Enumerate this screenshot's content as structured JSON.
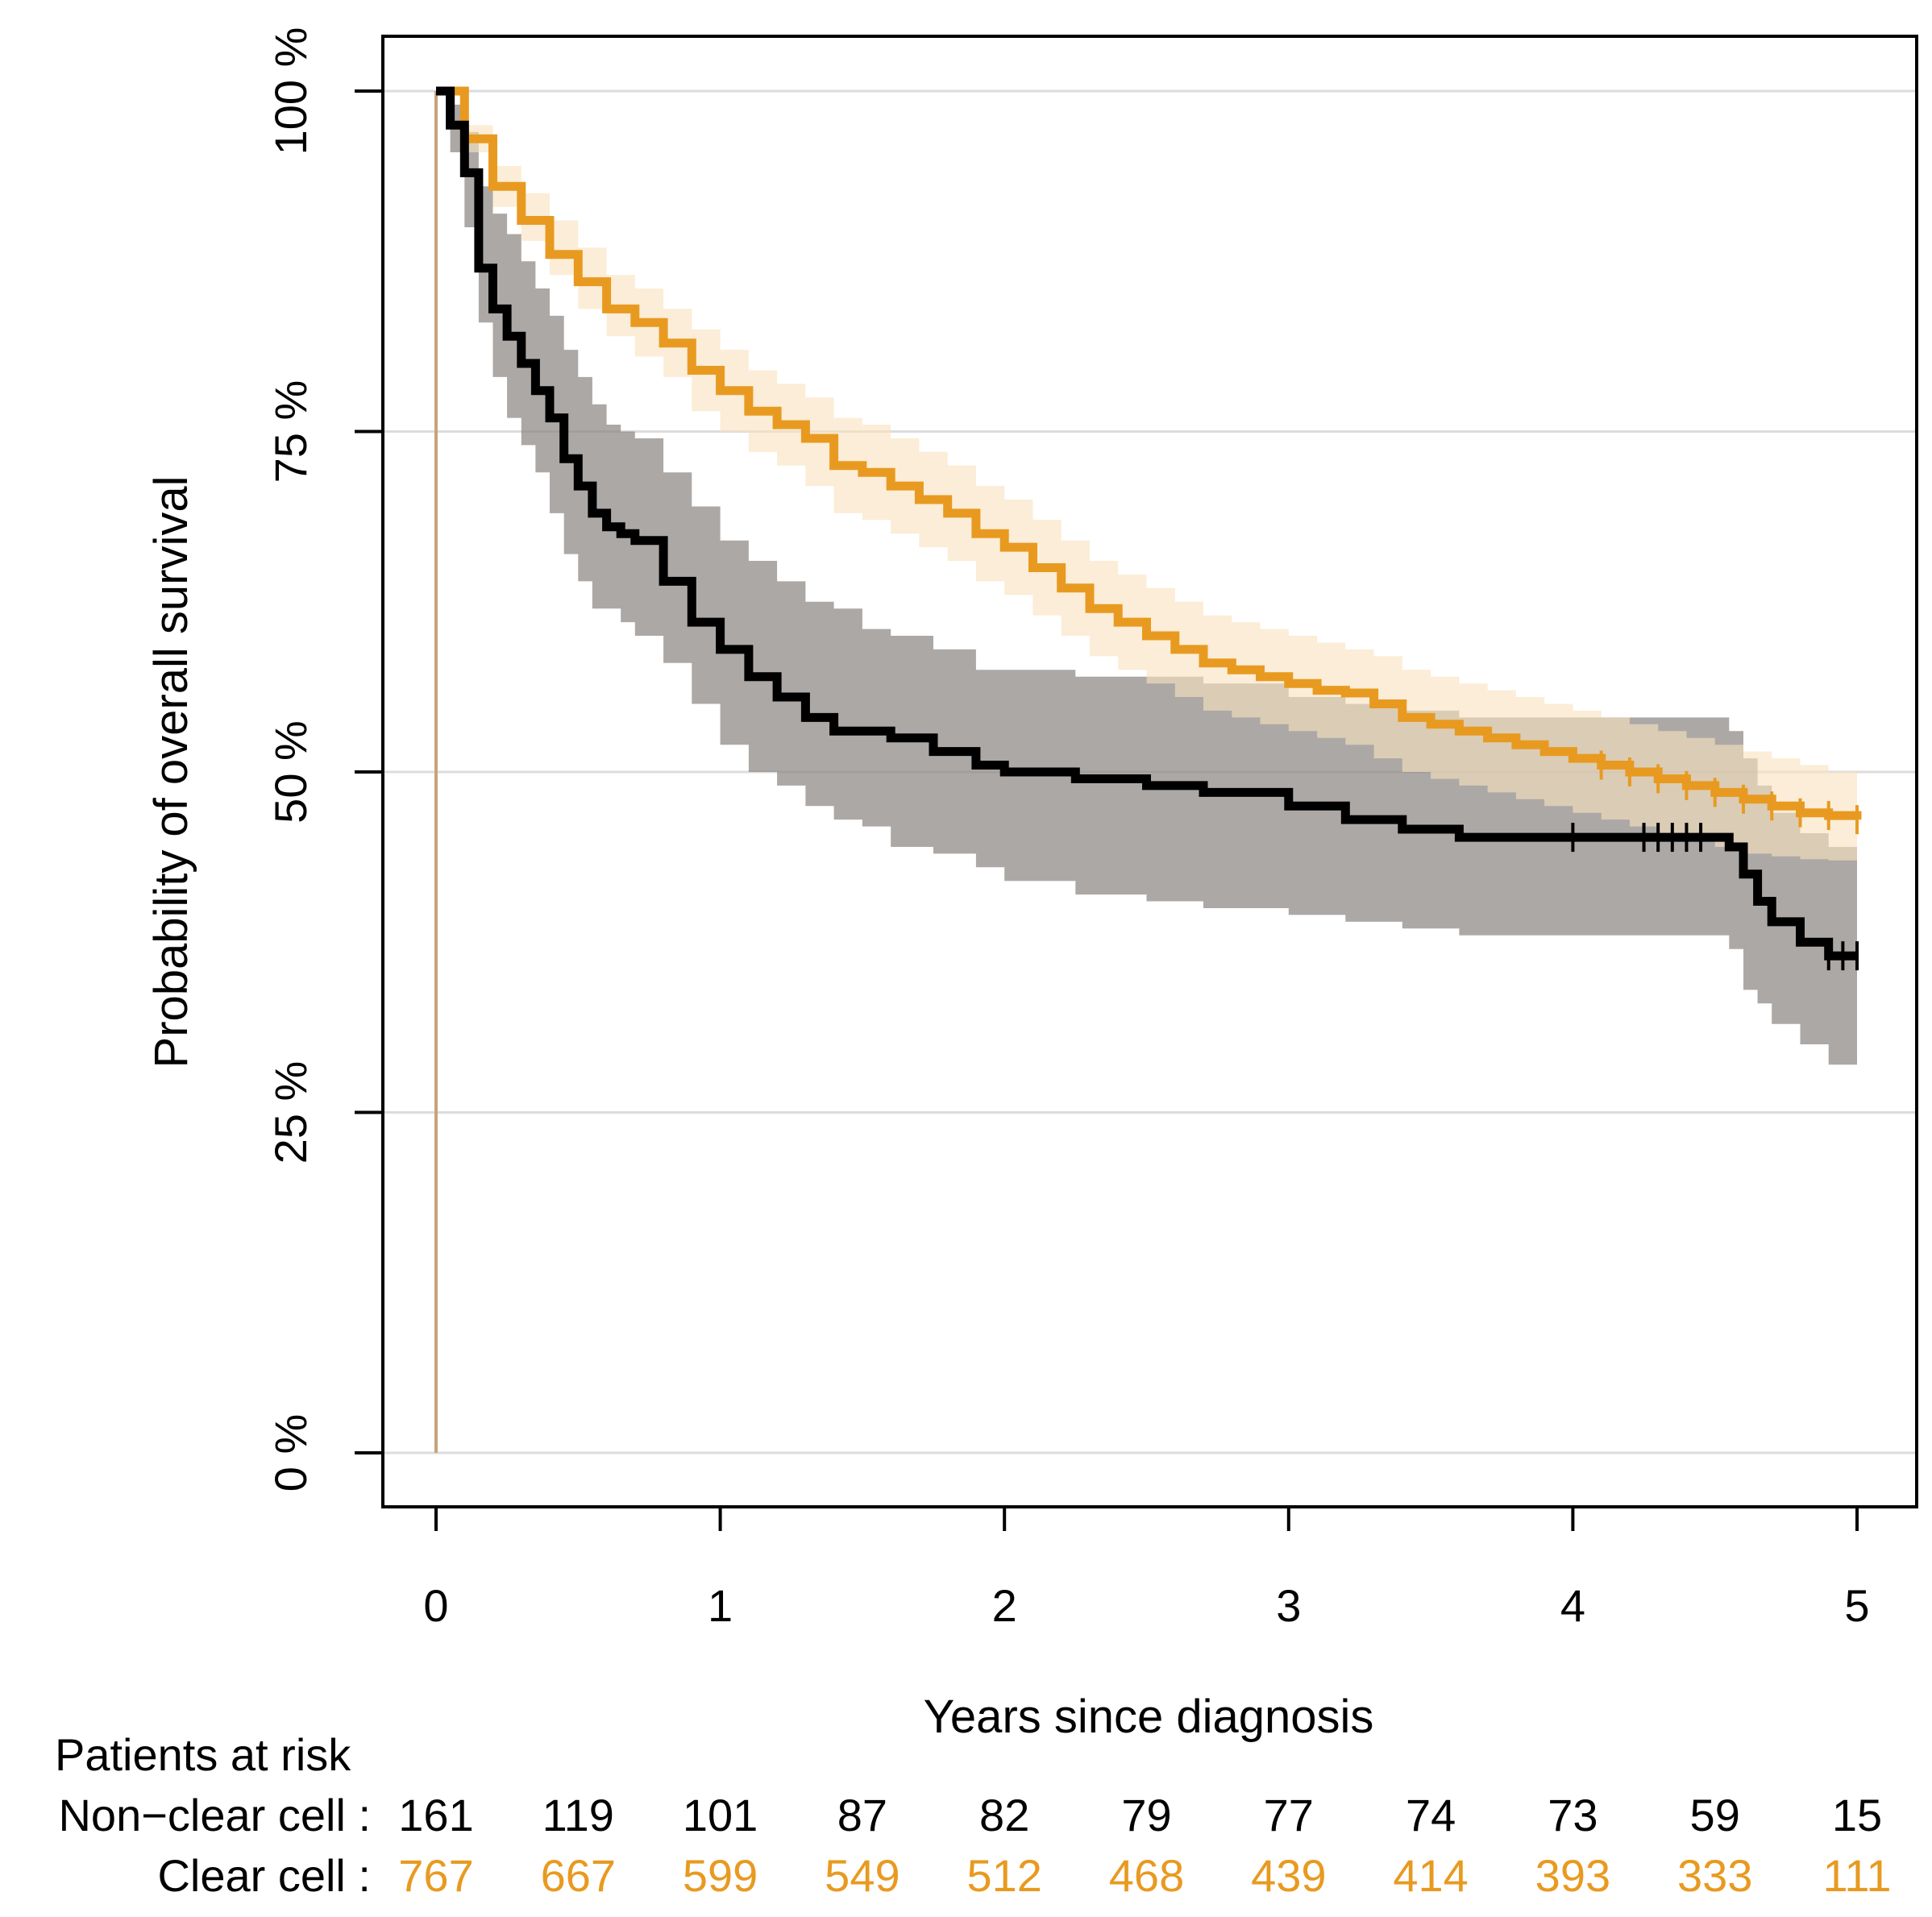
{
  "chart_data": {
    "type": "line",
    "subtype": "kaplan-meier",
    "title": "",
    "xlabel": "Years since diagnosis",
    "ylabel": "Probability of overall survival",
    "xlim": [
      0,
      5
    ],
    "ylim": [
      0,
      1
    ],
    "x_ticks": [
      "0",
      "1",
      "2",
      "3",
      "4",
      "5"
    ],
    "y_ticks": [
      "0 %",
      "25 %",
      "50 %",
      "75 %",
      "100 %"
    ],
    "grid": "horizontal",
    "series": [
      {
        "name": "Non−clear cell",
        "color": "#000000",
        "band_color": "#8c8684",
        "x": [
          0,
          0.05,
          0.1,
          0.15,
          0.2,
          0.25,
          0.3,
          0.35,
          0.4,
          0.45,
          0.5,
          0.55,
          0.6,
          0.65,
          0.7,
          0.8,
          0.9,
          1.0,
          1.1,
          1.2,
          1.3,
          1.4,
          1.5,
          1.6,
          1.75,
          1.9,
          2.0,
          2.25,
          2.5,
          2.7,
          3.0,
          3.2,
          3.4,
          3.6,
          4.0,
          4.3,
          4.45,
          4.55,
          4.6,
          4.65,
          4.7,
          4.8,
          4.9,
          5.0
        ],
        "values": [
          1.0,
          0.975,
          0.94,
          0.87,
          0.84,
          0.82,
          0.8,
          0.78,
          0.76,
          0.73,
          0.71,
          0.69,
          0.68,
          0.675,
          0.67,
          0.64,
          0.61,
          0.59,
          0.57,
          0.555,
          0.54,
          0.53,
          0.53,
          0.525,
          0.515,
          0.505,
          0.5,
          0.495,
          0.49,
          0.485,
          0.475,
          0.465,
          0.458,
          0.452,
          0.452,
          0.452,
          0.452,
          0.445,
          0.425,
          0.405,
          0.39,
          0.375,
          0.365,
          0.365
        ],
        "ci_lower": [
          1.0,
          0.955,
          0.9,
          0.83,
          0.79,
          0.76,
          0.74,
          0.72,
          0.69,
          0.66,
          0.64,
          0.62,
          0.62,
          0.61,
          0.6,
          0.58,
          0.55,
          0.52,
          0.5,
          0.49,
          0.475,
          0.465,
          0.46,
          0.445,
          0.44,
          0.43,
          0.42,
          0.41,
          0.405,
          0.4,
          0.395,
          0.39,
          0.385,
          0.38,
          0.38,
          0.38,
          0.38,
          0.37,
          0.34,
          0.33,
          0.315,
          0.3,
          0.285,
          0.285
        ],
        "ci_upper": [
          1.0,
          0.99,
          0.97,
          0.93,
          0.91,
          0.895,
          0.875,
          0.855,
          0.835,
          0.81,
          0.79,
          0.77,
          0.755,
          0.75,
          0.745,
          0.72,
          0.695,
          0.67,
          0.655,
          0.64,
          0.625,
          0.62,
          0.605,
          0.6,
          0.59,
          0.575,
          0.575,
          0.57,
          0.57,
          0.565,
          0.555,
          0.55,
          0.545,
          0.54,
          0.54,
          0.54,
          0.54,
          0.53,
          0.51,
          0.49,
          0.47,
          0.455,
          0.445,
          0.445
        ],
        "at_risk": [
          161,
          119,
          101,
          87,
          82,
          79,
          77,
          74,
          73,
          59,
          15
        ]
      },
      {
        "name": "Clear cell",
        "color": "#e89a20",
        "band_color": "#f8e2be",
        "x": [
          0,
          0.1,
          0.2,
          0.3,
          0.4,
          0.5,
          0.6,
          0.7,
          0.8,
          0.9,
          1.0,
          1.1,
          1.2,
          1.3,
          1.4,
          1.5,
          1.6,
          1.7,
          1.8,
          1.9,
          2.0,
          2.1,
          2.2,
          2.3,
          2.4,
          2.5,
          2.6,
          2.7,
          2.8,
          2.9,
          3.0,
          3.1,
          3.2,
          3.3,
          3.4,
          3.5,
          3.6,
          3.7,
          3.8,
          3.9,
          4.0,
          4.1,
          4.2,
          4.3,
          4.4,
          4.5,
          4.6,
          4.7,
          4.8,
          4.9,
          5.0
        ],
        "values": [
          1.0,
          0.965,
          0.93,
          0.905,
          0.88,
          0.86,
          0.84,
          0.83,
          0.815,
          0.795,
          0.78,
          0.765,
          0.755,
          0.745,
          0.725,
          0.72,
          0.71,
          0.7,
          0.69,
          0.675,
          0.665,
          0.65,
          0.635,
          0.62,
          0.61,
          0.6,
          0.59,
          0.58,
          0.575,
          0.57,
          0.565,
          0.56,
          0.558,
          0.55,
          0.54,
          0.535,
          0.53,
          0.525,
          0.52,
          0.515,
          0.51,
          0.505,
          0.5,
          0.495,
          0.49,
          0.485,
          0.48,
          0.475,
          0.47,
          0.468,
          0.465
        ],
        "ci_lower": [
          1.0,
          0.955,
          0.915,
          0.89,
          0.865,
          0.84,
          0.82,
          0.805,
          0.79,
          0.765,
          0.75,
          0.735,
          0.725,
          0.71,
          0.69,
          0.685,
          0.675,
          0.665,
          0.655,
          0.64,
          0.63,
          0.615,
          0.6,
          0.585,
          0.575,
          0.565,
          0.555,
          0.545,
          0.54,
          0.535,
          0.53,
          0.525,
          0.52,
          0.51,
          0.5,
          0.495,
          0.49,
          0.485,
          0.48,
          0.475,
          0.47,
          0.465,
          0.46,
          0.455,
          0.45,
          0.445,
          0.44,
          0.438,
          0.436,
          0.435,
          0.435
        ],
        "ci_upper": [
          1.0,
          0.975,
          0.945,
          0.925,
          0.905,
          0.885,
          0.865,
          0.855,
          0.84,
          0.825,
          0.81,
          0.795,
          0.785,
          0.775,
          0.76,
          0.755,
          0.745,
          0.735,
          0.725,
          0.71,
          0.7,
          0.685,
          0.67,
          0.655,
          0.645,
          0.635,
          0.625,
          0.615,
          0.61,
          0.605,
          0.6,
          0.595,
          0.59,
          0.585,
          0.575,
          0.57,
          0.565,
          0.56,
          0.555,
          0.55,
          0.545,
          0.54,
          0.535,
          0.53,
          0.525,
          0.52,
          0.515,
          0.51,
          0.505,
          0.5,
          0.5
        ],
        "at_risk": [
          767,
          667,
          599,
          549,
          512,
          468,
          439,
          414,
          393,
          333,
          111
        ]
      }
    ],
    "risk_table": {
      "heading": "Patients at risk",
      "times": [
        0,
        0.5,
        1,
        1.5,
        2,
        2.5,
        3,
        3.5,
        4,
        4.5,
        5
      ],
      "rows": [
        {
          "label": "Non−clear cell :",
          "values": [
            "161",
            "119",
            "101",
            "87",
            "82",
            "79",
            "77",
            "74",
            "73",
            "59",
            "15"
          ],
          "color": "#000000"
        },
        {
          "label": "Clear cell :",
          "values": [
            "767",
            "667",
            "599",
            "549",
            "512",
            "468",
            "439",
            "414",
            "393",
            "333",
            "111"
          ],
          "color": "#e89a20"
        }
      ]
    }
  }
}
